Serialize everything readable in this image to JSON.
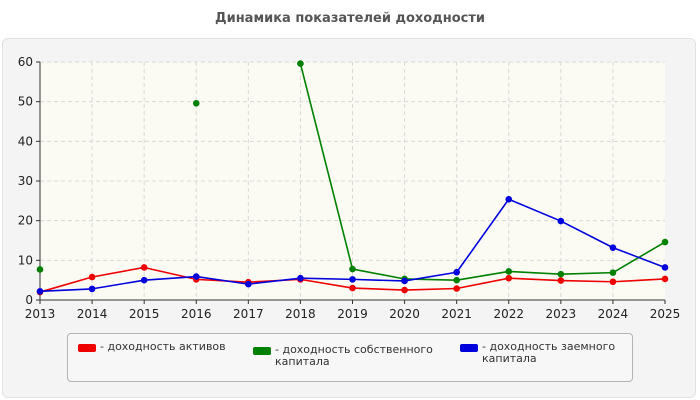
{
  "colors": {
    "red": "#ee0000",
    "green": "#008000",
    "blue": "#0000dd",
    "grid": "#d8d8d8",
    "plot_bg": "#fbfbf4"
  },
  "chart_data": {
    "type": "line",
    "title": "Динамика показателей доходности",
    "xlabel": "",
    "ylabel": "",
    "x": [
      "2013",
      "2014",
      "2015",
      "2016",
      "2017",
      "2018",
      "2019",
      "2020",
      "2021",
      "2022",
      "2023",
      "2024",
      "2025"
    ],
    "yticks": [
      "0",
      "10",
      "20",
      "30",
      "40",
      "50",
      "60"
    ],
    "ylim": [
      0,
      60
    ],
    "grid": true,
    "legend_position": "bottom",
    "series": [
      {
        "name": "- доходность активов",
        "color": "#ee0000",
        "values": [
          2.0,
          5.8,
          8.2,
          5.2,
          4.5,
          5.2,
          3.0,
          2.5,
          2.9,
          5.5,
          4.9,
          4.6,
          5.3
        ]
      },
      {
        "name": "- доходность собственного капитала",
        "color": "#008000",
        "values": [
          7.7,
          null,
          null,
          49.6,
          null,
          59.6,
          7.8,
          5.3,
          5.0,
          7.2,
          6.5,
          6.9,
          14.6
        ]
      },
      {
        "name": "- доходность заемного капитала",
        "color": "#0000dd",
        "values": [
          2.2,
          2.8,
          5.0,
          5.9,
          4.0,
          5.5,
          5.2,
          4.8,
          7.0,
          25.4,
          19.9,
          13.2,
          8.2
        ]
      }
    ]
  },
  "legend": {
    "items": [
      {
        "line1": "- доходность активов",
        "line2": ""
      },
      {
        "line1": "- доходность собственного",
        "line2": "капитала"
      },
      {
        "line1": "- доходность заемного",
        "line2": "капитала"
      }
    ]
  }
}
